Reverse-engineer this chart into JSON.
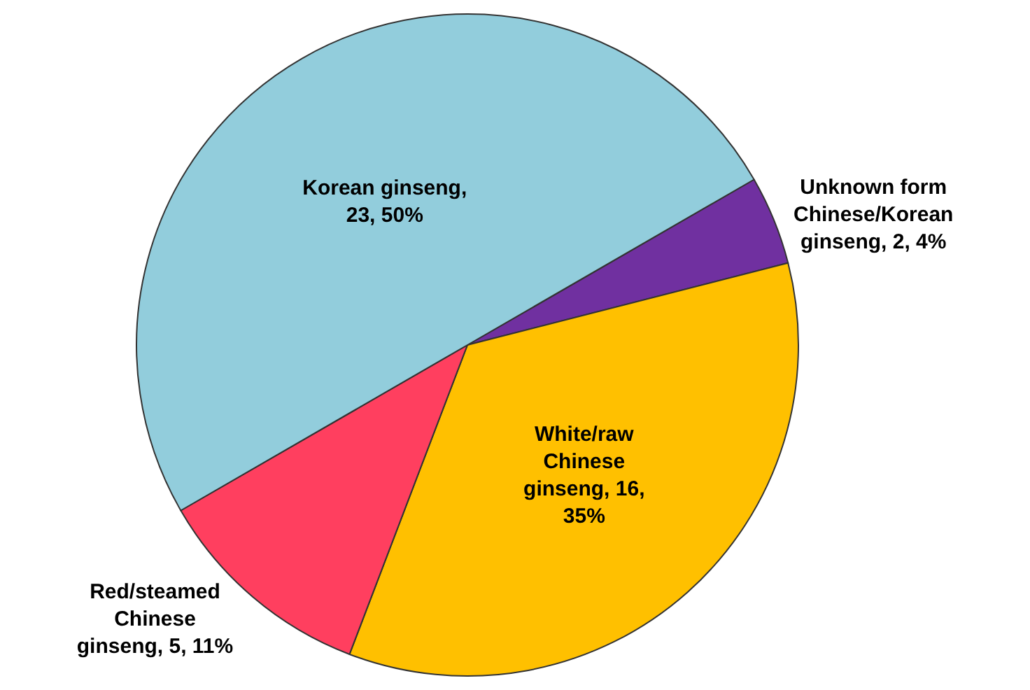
{
  "chart_data": {
    "type": "pie",
    "categories": [
      "Unknown form\nChinese/Korean\nginseng",
      "White/raw\nChinese\nginseng",
      "Red/steamed\nChinese\nginseng",
      "Korean ginseng"
    ],
    "values": [
      2,
      16,
      5,
      23
    ],
    "colors": [
      "#7030a0",
      "#ffc000",
      "#ff3f5f",
      "#92cddc"
    ],
    "value_labels": [
      ", 2, 4%",
      ", 16,\n35%",
      ", 5, 11%",
      ",\n23, 50%"
    ]
  }
}
